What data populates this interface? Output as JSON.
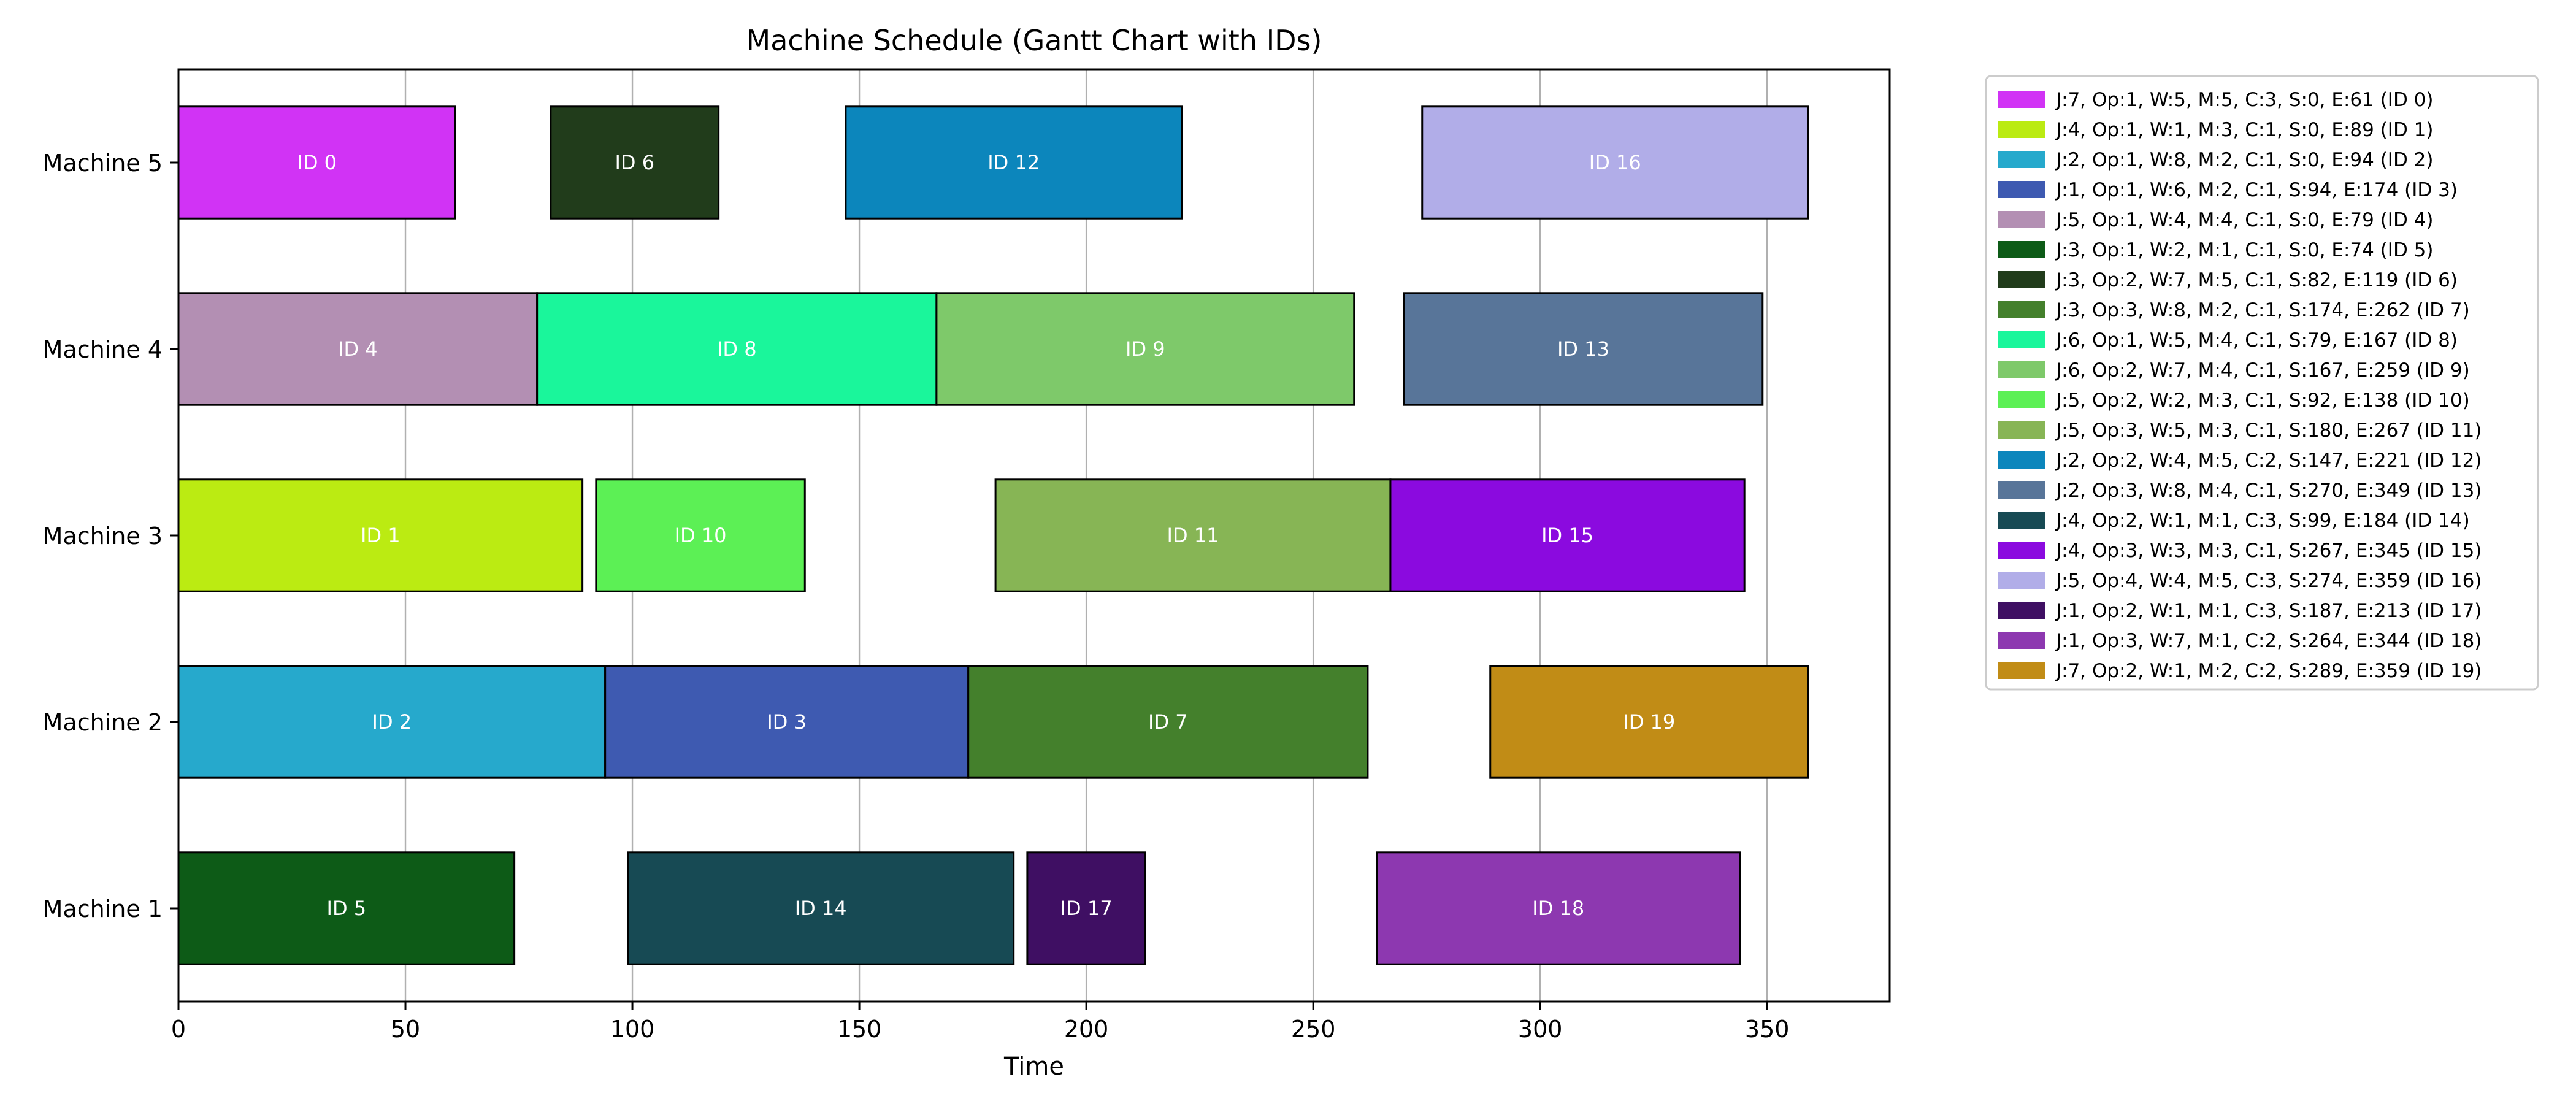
{
  "chart_data": {
    "type": "gantt",
    "title": "Machine Schedule (Gantt Chart with IDs)",
    "xlabel": "Time",
    "ylabel": "",
    "xlim": [
      0,
      377
    ],
    "xticks": [
      0,
      50,
      100,
      150,
      200,
      250,
      300,
      350
    ],
    "grid": "vertical",
    "legend_position": "outside-right",
    "machines": [
      "Machine 1",
      "Machine 2",
      "Machine 3",
      "Machine 4",
      "Machine 5"
    ],
    "tasks": [
      {
        "id": "ID 0",
        "machine": "Machine 5",
        "start": 0,
        "end": 61,
        "color": "#d133f5",
        "legend": "J:7, Op:1, W:5, M:5, C:3, S:0, E:61 (ID 0)"
      },
      {
        "id": "ID 1",
        "machine": "Machine 3",
        "start": 0,
        "end": 89,
        "color": "#bbeb12",
        "legend": "J:4, Op:1, W:1, M:3, C:1, S:0, E:89 (ID 1)"
      },
      {
        "id": "ID 2",
        "machine": "Machine 2",
        "start": 0,
        "end": 94,
        "color": "#26a9cc",
        "legend": "J:2, Op:1, W:8, M:2, C:1, S:0, E:94 (ID 2)"
      },
      {
        "id": "ID 3",
        "machine": "Machine 2",
        "start": 94,
        "end": 174,
        "color": "#3e5ab1",
        "legend": "J:1, Op:1, W:6, M:2, C:1, S:94, E:174 (ID 3)"
      },
      {
        "id": "ID 4",
        "machine": "Machine 4",
        "start": 0,
        "end": 79,
        "color": "#b38fb3",
        "legend": "J:5, Op:1, W:4, M:4, C:1, S:0, E:79 (ID 4)"
      },
      {
        "id": "ID 5",
        "machine": "Machine 1",
        "start": 0,
        "end": 74,
        "color": "#0d5b17",
        "legend": "J:3, Op:1, W:2, M:1, C:1, S:0, E:74 (ID 5)"
      },
      {
        "id": "ID 6",
        "machine": "Machine 5",
        "start": 82,
        "end": 119,
        "color": "#213c1b",
        "legend": "J:3, Op:2, W:7, M:5, C:1, S:82, E:119 (ID 6)"
      },
      {
        "id": "ID 7",
        "machine": "Machine 2",
        "start": 174,
        "end": 262,
        "color": "#44802c",
        "legend": "J:3, Op:3, W:8, M:2, C:1, S:174, E:262 (ID 7)"
      },
      {
        "id": "ID 8",
        "machine": "Machine 4",
        "start": 79,
        "end": 167,
        "color": "#1af69b",
        "legend": "J:6, Op:1, W:5, M:4, C:1, S:79, E:167 (ID 8)"
      },
      {
        "id": "ID 9",
        "machine": "Machine 4",
        "start": 167,
        "end": 259,
        "color": "#7ec96a",
        "legend": "J:6, Op:2, W:7, M:4, C:1, S:167, E:259 (ID 9)"
      },
      {
        "id": "ID 10",
        "machine": "Machine 3",
        "start": 92,
        "end": 138,
        "color": "#5cf055",
        "legend": "J:5, Op:2, W:2, M:3, C:1, S:92, E:138 (ID 10)"
      },
      {
        "id": "ID 11",
        "machine": "Machine 3",
        "start": 180,
        "end": 267,
        "color": "#87b555",
        "legend": "J:5, Op:3, W:5, M:3, C:1, S:180, E:267 (ID 11)"
      },
      {
        "id": "ID 12",
        "machine": "Machine 5",
        "start": 147,
        "end": 221,
        "color": "#0c86bc",
        "legend": "J:2, Op:2, W:4, M:5, C:2, S:147, E:221 (ID 12)"
      },
      {
        "id": "ID 13",
        "machine": "Machine 4",
        "start": 270,
        "end": 349,
        "color": "#587599",
        "legend": "J:2, Op:3, W:8, M:4, C:1, S:270, E:349 (ID 13)"
      },
      {
        "id": "ID 14",
        "machine": "Machine 1",
        "start": 99,
        "end": 184,
        "color": "#174a54",
        "legend": "J:4, Op:2, W:1, M:1, C:3, S:99, E:184 (ID 14)"
      },
      {
        "id": "ID 15",
        "machine": "Machine 3",
        "start": 267,
        "end": 345,
        "color": "#8b0adf",
        "legend": "J:4, Op:3, W:3, M:3, C:1, S:267, E:345 (ID 15)"
      },
      {
        "id": "ID 16",
        "machine": "Machine 5",
        "start": 274,
        "end": 359,
        "color": "#b1ade8",
        "legend": "J:5, Op:4, W:4, M:5, C:3, S:274, E:359 (ID 16)"
      },
      {
        "id": "ID 17",
        "machine": "Machine 1",
        "start": 187,
        "end": 213,
        "color": "#3f0f63",
        "legend": "J:1, Op:2, W:1, M:1, C:3, S:187, E:213 (ID 17)"
      },
      {
        "id": "ID 18",
        "machine": "Machine 1",
        "start": 264,
        "end": 344,
        "color": "#8d38b0",
        "legend": "J:1, Op:3, W:7, M:1, C:2, S:264, E:344 (ID 18)"
      },
      {
        "id": "ID 19",
        "machine": "Machine 2",
        "start": 289,
        "end": 359,
        "color": "#c18c16",
        "legend": "J:7, Op:2, W:1, M:2, C:2, S:289, E:359 (ID 19)"
      }
    ]
  }
}
